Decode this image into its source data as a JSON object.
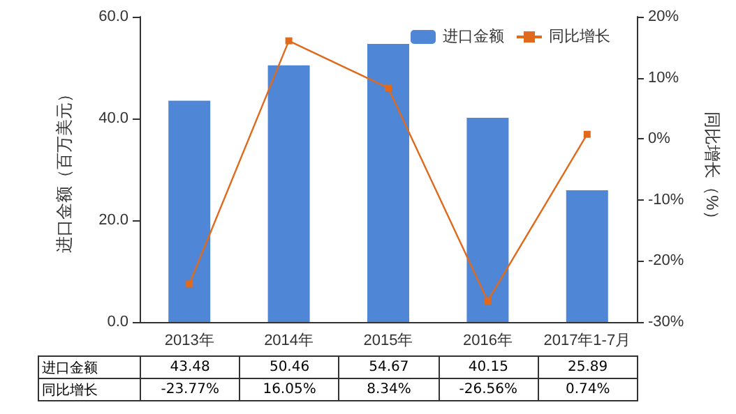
{
  "chart_data": {
    "type": "bar",
    "ylabel": "进口金额（百万美元）",
    "y2label": "同比增长（%）",
    "categories": [
      "2013年",
      "2014年",
      "2015年",
      "2016年",
      "2017年1-7月"
    ],
    "series": [
      {
        "name": "进口金额",
        "color": "#4f86d6",
        "values": [
          43.48,
          50.46,
          54.67,
          40.15,
          25.89
        ],
        "value_labels": [
          "43.48",
          "50.46",
          "54.67",
          "40.15",
          "25.89"
        ]
      },
      {
        "name": "同比增长",
        "type": "line",
        "axis": "y2",
        "color": "#e0691c",
        "marker": "square",
        "values": [
          -23.77,
          16.05,
          8.34,
          -26.56,
          0.74
        ],
        "value_labels": [
          "-23.77%",
          "16.05%",
          "8.34%",
          "-26.56%",
          "0.74%"
        ]
      }
    ],
    "ylim": [
      0,
      60
    ],
    "yticks": [
      {
        "value": 0,
        "label": "0.0"
      },
      {
        "value": 20,
        "label": "20.0"
      },
      {
        "value": 40,
        "label": "40.0"
      },
      {
        "value": 60,
        "label": "60.0"
      }
    ],
    "y2lim": [
      -30,
      20
    ],
    "y2ticks": [
      {
        "value": -30,
        "label": "-30%"
      },
      {
        "value": -20,
        "label": "-20%"
      },
      {
        "value": -10,
        "label": "-10%"
      },
      {
        "value": 0,
        "label": "0%"
      },
      {
        "value": 10,
        "label": "10%"
      },
      {
        "value": 20,
        "label": "20%"
      }
    ],
    "legend": "top right",
    "grid": false
  }
}
